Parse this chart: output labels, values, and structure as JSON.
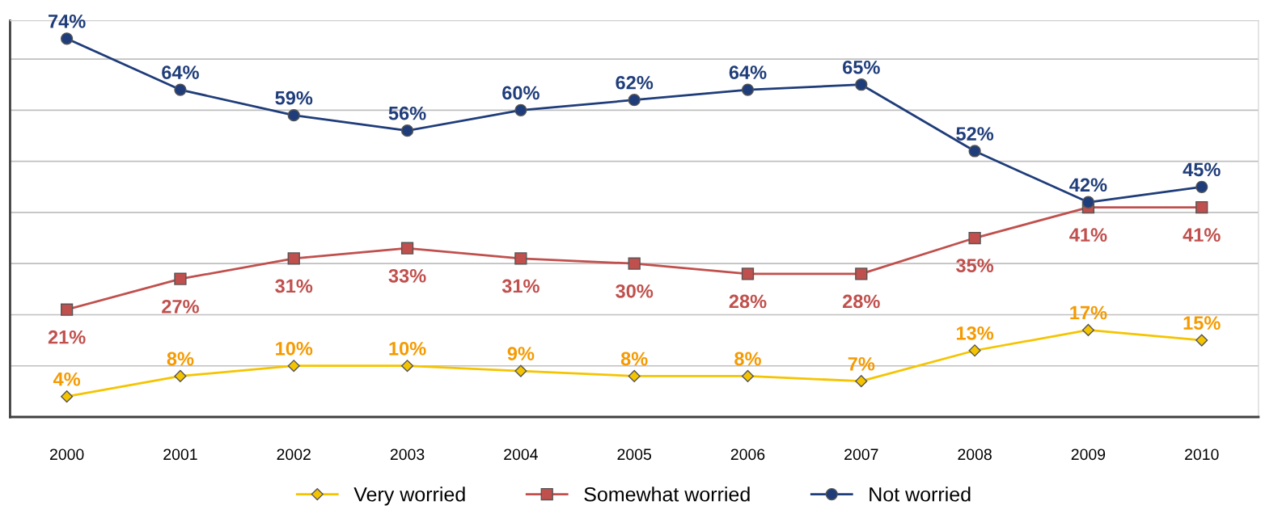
{
  "chart_data": {
    "type": "line",
    "categories": [
      "2000",
      "2001",
      "2002",
      "2003",
      "2004",
      "2005",
      "2006",
      "2007",
      "2008",
      "2009",
      "2010"
    ],
    "series": [
      {
        "name": "Very worried",
        "color": "#f5c400",
        "marker": "diamond",
        "values": [
          4,
          8,
          10,
          10,
          9,
          8,
          8,
          7,
          13,
          17,
          15
        ],
        "value_labels": [
          "4%",
          "8%",
          "10%",
          "10%",
          "9%",
          "8%",
          "8%",
          "7%",
          "13%",
          "17%",
          "15%"
        ]
      },
      {
        "name": "Somewhat worried",
        "color": "#c0504d",
        "marker": "square",
        "values": [
          21,
          27,
          31,
          33,
          31,
          30,
          28,
          28,
          35,
          41,
          41
        ],
        "value_labels": [
          "21%",
          "27%",
          "31%",
          "33%",
          "31%",
          "30%",
          "28%",
          "28%",
          "35%",
          "41%",
          "41%"
        ]
      },
      {
        "name": "Not worried",
        "color": "#1f3d7a",
        "marker": "circle",
        "values": [
          74,
          64,
          59,
          56,
          60,
          62,
          64,
          65,
          52,
          42,
          45
        ],
        "value_labels": [
          "74%",
          "64%",
          "59%",
          "56%",
          "60%",
          "62%",
          "64%",
          "65%",
          "52%",
          "42%",
          "45%"
        ]
      }
    ],
    "tick_labels": "x",
    "grid": "y",
    "legend": "bottom",
    "line_style": "solid"
  }
}
